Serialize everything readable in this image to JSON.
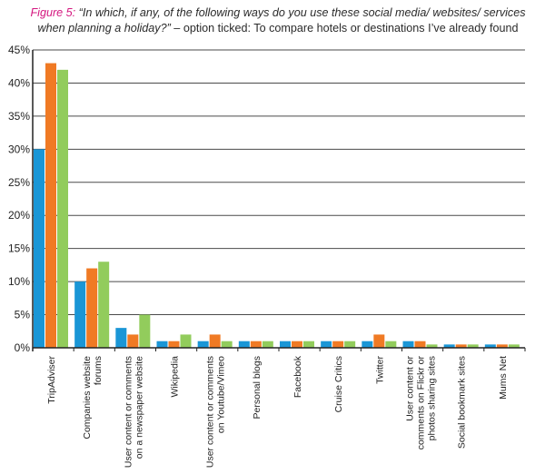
{
  "title": {
    "figure_label": "Figure 5:",
    "question": "“In which, if any, of the following ways do you use these social media/ websites/ services when planning a holiday?”",
    "option_text": " – option ticked:  To compare hotels or destinations I’ve already found"
  },
  "colors": {
    "series": [
      "#1a96d6",
      "#f07a24",
      "#92cc5c"
    ],
    "axis": "#222222",
    "grid": "#4a4a4a",
    "fig_label": "#d4177f"
  },
  "chart_data": {
    "type": "bar",
    "title": "",
    "xlabel": "",
    "ylabel": "",
    "ylim": [
      0,
      45
    ],
    "y_ticks": [
      "0%",
      "5%",
      "10%",
      "15%",
      "20%",
      "25%",
      "30%",
      "35%",
      "40%",
      "45%"
    ],
    "grid": true,
    "legend": "none",
    "categories": [
      [
        "TripAdviser"
      ],
      [
        "Companies website",
        "forums"
      ],
      [
        "User content or comments",
        "on a newspaper website"
      ],
      [
        "Wikipedia"
      ],
      [
        "User content or comments",
        "on Youtube/Vimeo"
      ],
      [
        "Personal blogs"
      ],
      [
        "Facebook"
      ],
      [
        "Cruise Critics"
      ],
      [
        "Twitter"
      ],
      [
        "User content or",
        "comments on  Flickr or",
        "photos sharing sites"
      ],
      [
        "Social bookmark sites"
      ],
      [
        "Mums Net"
      ]
    ],
    "series": [
      {
        "values": [
          30,
          10,
          3,
          1,
          1,
          1,
          1,
          1,
          1,
          1,
          0.5,
          0.5
        ]
      },
      {
        "values": [
          43,
          12,
          2,
          1,
          2,
          1,
          1,
          1,
          2,
          1,
          0.5,
          0.5
        ]
      },
      {
        "values": [
          42,
          13,
          5,
          2,
          1,
          1,
          1,
          1,
          1,
          0.5,
          0.5,
          0.5
        ]
      }
    ]
  }
}
